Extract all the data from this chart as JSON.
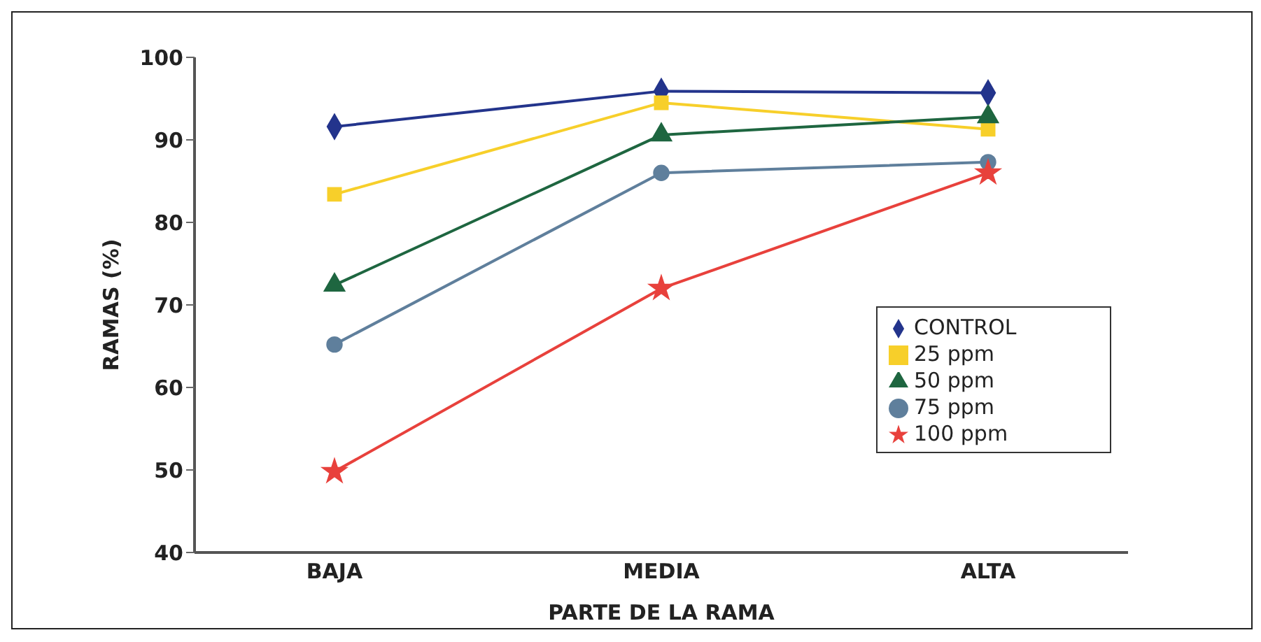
{
  "chart_data": {
    "type": "line",
    "xlabel": "PARTE DE LA RAMA",
    "ylabel": "RAMAS (%)",
    "categories": [
      "BAJA",
      "MEDIA",
      "ALTA"
    ],
    "ylim": [
      40,
      100
    ],
    "yticks": [
      40,
      50,
      60,
      70,
      80,
      90,
      100
    ],
    "legend": "right",
    "series": [
      {
        "name": "CONTROL",
        "color": "#23348c",
        "marker": "diamond",
        "values": [
          91.6,
          95.9,
          95.7
        ]
      },
      {
        "name": "25 ppm",
        "color": "#f7cf2a",
        "marker": "square",
        "values": [
          83.4,
          94.5,
          91.3
        ]
      },
      {
        "name": "50 ppm",
        "color": "#1e6640",
        "marker": "triangle",
        "values": [
          72.4,
          90.6,
          92.8
        ]
      },
      {
        "name": "75 ppm",
        "color": "#5f7f9c",
        "marker": "circle",
        "values": [
          65.2,
          86,
          87.3
        ]
      },
      {
        "name": "100 ppm",
        "color": "#e8413c",
        "marker": "star",
        "values": [
          49.8,
          72,
          86
        ]
      }
    ]
  }
}
